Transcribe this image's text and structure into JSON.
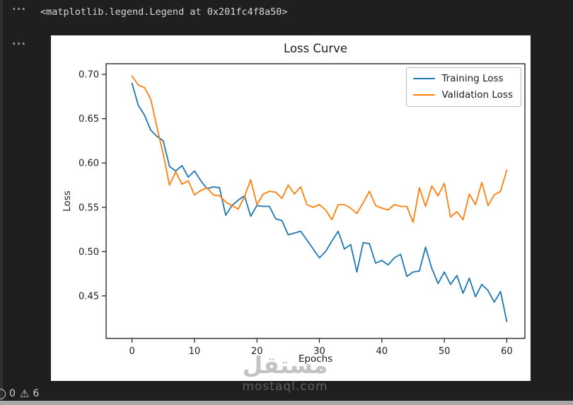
{
  "notebook": {
    "output_repr": "<matplotlib.legend.Legend at 0x201fc4f8a50>",
    "collapse_toggle_glyph": "···"
  },
  "status_bar": {
    "error_icon": "circle-errors-icon",
    "errors_count": "0",
    "warning_icon": "triangle-warning-icon",
    "warning_glyph": "⚠",
    "warnings_count": "6"
  },
  "watermark": {
    "arabic_text": "مستقل",
    "site_text": "mostaql.com"
  },
  "colors": {
    "editor_bg": "#1f1f20",
    "figure_bg": "#ffffff",
    "training_line": "#1f77b4",
    "validation_line": "#ff7f0e",
    "axis": "#1a1a1a",
    "bottom_strip": "#a8a8a8"
  },
  "chart_data": {
    "type": "line",
    "title": "Loss Curve",
    "xlabel": "Epochs",
    "ylabel": "Loss",
    "legend_position": "upper right",
    "grid": false,
    "xticks": [
      0,
      10,
      20,
      30,
      40,
      50,
      60
    ],
    "yticks": [
      0.45,
      0.5,
      0.55,
      0.6,
      0.65,
      0.7
    ],
    "xlim": [
      -4.15,
      62.9
    ],
    "ylim": [
      0.402,
      0.712
    ],
    "x": [
      0,
      1,
      2,
      3,
      4,
      5,
      6,
      7,
      8,
      9,
      10,
      11,
      12,
      13,
      14,
      15,
      16,
      17,
      18,
      19,
      20,
      21,
      22,
      23,
      24,
      25,
      26,
      27,
      28,
      29,
      30,
      31,
      32,
      33,
      34,
      35,
      36,
      37,
      38,
      39,
      40,
      41,
      42,
      43,
      44,
      45,
      46,
      47,
      48,
      49,
      50,
      51,
      52,
      53,
      54,
      55,
      56,
      57,
      58,
      59,
      60
    ],
    "series": [
      {
        "name": "Training Loss",
        "color": "#1f77b4",
        "values": [
          0.69,
          0.665,
          0.654,
          0.637,
          0.63,
          0.625,
          0.596,
          0.591,
          0.597,
          0.584,
          0.591,
          0.58,
          0.571,
          0.573,
          0.572,
          0.541,
          0.552,
          0.558,
          0.563,
          0.54,
          0.552,
          0.551,
          0.551,
          0.537,
          0.535,
          0.519,
          0.521,
          0.523,
          0.513,
          0.503,
          0.493,
          0.5,
          0.512,
          0.523,
          0.503,
          0.508,
          0.477,
          0.51,
          0.509,
          0.487,
          0.49,
          0.485,
          0.493,
          0.497,
          0.472,
          0.477,
          0.478,
          0.505,
          0.481,
          0.464,
          0.477,
          0.463,
          0.473,
          0.453,
          0.47,
          0.449,
          0.463,
          0.456,
          0.443,
          0.455,
          0.421
        ]
      },
      {
        "name": "Validation Loss",
        "color": "#ff7f0e",
        "values": [
          0.698,
          0.688,
          0.685,
          0.672,
          0.64,
          0.61,
          0.575,
          0.59,
          0.576,
          0.58,
          0.564,
          0.569,
          0.572,
          0.564,
          0.563,
          0.556,
          0.552,
          0.548,
          0.562,
          0.581,
          0.553,
          0.565,
          0.568,
          0.567,
          0.56,
          0.575,
          0.565,
          0.573,
          0.553,
          0.55,
          0.553,
          0.547,
          0.536,
          0.553,
          0.553,
          0.549,
          0.543,
          0.555,
          0.568,
          0.552,
          0.549,
          0.547,
          0.553,
          0.551,
          0.551,
          0.533,
          0.572,
          0.551,
          0.574,
          0.563,
          0.577,
          0.539,
          0.545,
          0.536,
          0.565,
          0.553,
          0.578,
          0.552,
          0.564,
          0.568,
          0.592
        ]
      }
    ]
  }
}
